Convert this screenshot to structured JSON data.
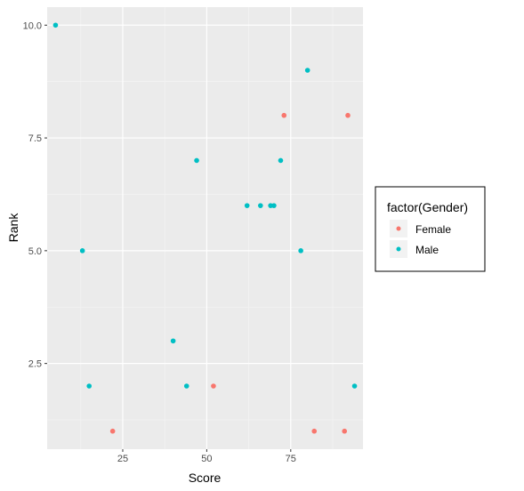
{
  "chart_data": {
    "type": "scatter",
    "xlabel": "Score",
    "ylabel": "Rank",
    "xlim": [
      2.5,
      96.5
    ],
    "ylim": [
      0.6,
      10.4
    ],
    "x_ticks": [
      25,
      50,
      75
    ],
    "y_ticks": [
      2.5,
      5.0,
      7.5,
      10.0
    ],
    "x_tick_labels": [
      "25",
      "50",
      "75"
    ],
    "y_tick_labels": [
      "2.5",
      "5.0",
      "7.5",
      "10.0"
    ],
    "grid": true,
    "legend": {
      "title": "factor(Gender)",
      "position": "right"
    },
    "series": [
      {
        "name": "Female",
        "color": "#F8766D",
        "points": [
          {
            "x": 22,
            "y": 1
          },
          {
            "x": 52,
            "y": 2
          },
          {
            "x": 73,
            "y": 8
          },
          {
            "x": 82,
            "y": 1
          },
          {
            "x": 91,
            "y": 1
          },
          {
            "x": 92,
            "y": 8
          }
        ]
      },
      {
        "name": "Male",
        "color": "#00BFC4",
        "points": [
          {
            "x": 5,
            "y": 10
          },
          {
            "x": 13,
            "y": 5
          },
          {
            "x": 15,
            "y": 2
          },
          {
            "x": 40,
            "y": 3
          },
          {
            "x": 44,
            "y": 2
          },
          {
            "x": 47,
            "y": 7
          },
          {
            "x": 62,
            "y": 6
          },
          {
            "x": 66,
            "y": 6
          },
          {
            "x": 69,
            "y": 6
          },
          {
            "x": 70,
            "y": 6
          },
          {
            "x": 72,
            "y": 7
          },
          {
            "x": 78,
            "y": 5
          },
          {
            "x": 80,
            "y": 9
          },
          {
            "x": 94,
            "y": 2
          }
        ]
      }
    ]
  },
  "colors": {
    "panel_background": "#EBEBEB",
    "grid_major": "#FFFFFF",
    "female": "#F8766D",
    "male": "#00BFC4"
  }
}
